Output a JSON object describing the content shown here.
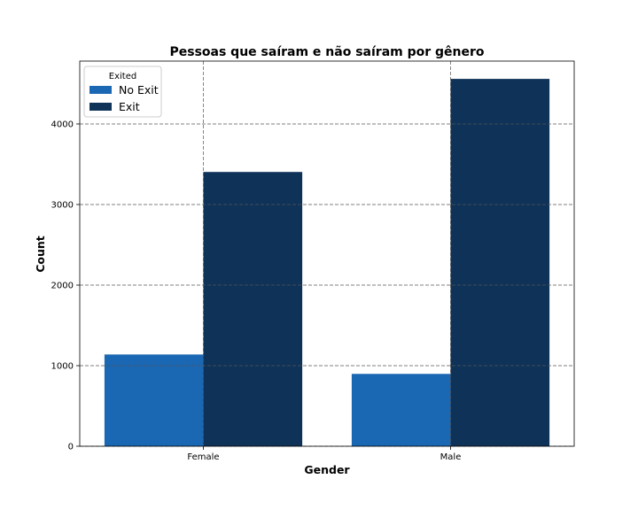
{
  "chart_data": {
    "type": "bar",
    "title": "Pessoas que saíram e não saíram por gênero",
    "xlabel": "Gender",
    "ylabel": "Count",
    "categories": [
      "Female",
      "Male"
    ],
    "series": [
      {
        "name": "No Exit",
        "values": [
          1139,
          898
        ],
        "color": "#1a67b3"
      },
      {
        "name": "Exit",
        "values": [
          3404,
          4559
        ],
        "color": "#0e3258"
      }
    ],
    "ylim": [
      0,
      4780
    ],
    "yticks": [
      0,
      1000,
      2000,
      3000,
      4000
    ],
    "grid": true,
    "legend": {
      "title": "Exited",
      "placement": "top-left"
    }
  }
}
